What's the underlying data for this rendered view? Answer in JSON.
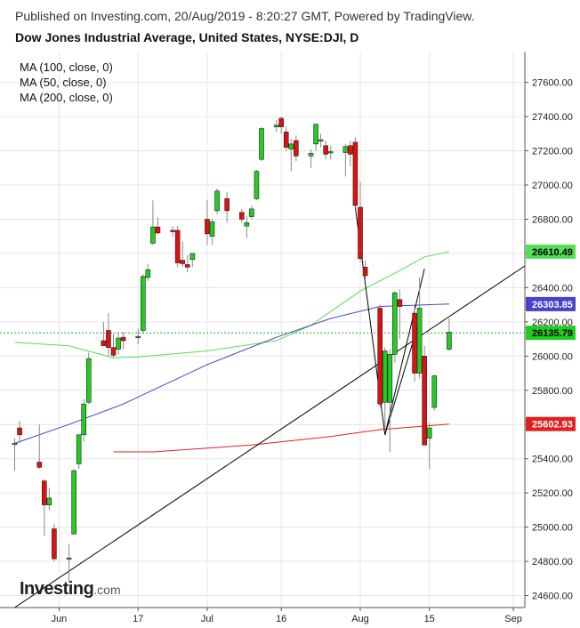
{
  "header": {
    "published": "Published on Investing.com, 20/Aug/2019 - 8:20:27 GMT, Powered by TradingView.",
    "title": "Dow Jones Industrial Average, United States, NYSE:DJI, D"
  },
  "legend": [
    "MA (100, close, 0)",
    "MA (50, close, 0)",
    "MA (200, close, 0)"
  ],
  "logo": {
    "name": "Investing",
    "suffix": ".com"
  },
  "colors": {
    "up": "#22cc22",
    "down": "#dd1111",
    "ma50": "#55dd55",
    "ma100": "#4444cc",
    "ma200": "#dd2222",
    "last_price_line": "#22aa22",
    "trendline": "#000000",
    "grid": "#e6e6e6"
  },
  "chart_data": {
    "type": "candlestick",
    "y_ticks": [
      "27600.00",
      "27400.00",
      "27200.00",
      "27000.00",
      "26800.00",
      "26600.00",
      "26400.00",
      "26200.00",
      "26000.00",
      "25800.00",
      "25600.00",
      "25400.00",
      "25200.00",
      "25000.00",
      "24800.00",
      "24600.00"
    ],
    "ylim": [
      24530,
      27780
    ],
    "x_ticks": [
      "Jun",
      "17",
      "Jul",
      "16",
      "Aug",
      "15",
      "Sep"
    ],
    "price_labels": [
      {
        "text": "26610.49",
        "value": 26610.49,
        "series": "ma50"
      },
      {
        "text": "26303.85",
        "value": 26303.85,
        "series": "ma100"
      },
      {
        "text": "26135.79",
        "value": 26135.79,
        "series": "last"
      },
      {
        "text": "25602.93",
        "value": 25602.93,
        "series": "ma200"
      }
    ],
    "candles": [
      {
        "date": "2019-05-23",
        "open": 25490,
        "high": 25520,
        "low": 25330,
        "close": 25490
      },
      {
        "date": "2019-05-24",
        "open": 25580,
        "high": 25620,
        "low": 25490,
        "close": 25540
      },
      {
        "date": "2019-05-28",
        "open": 25380,
        "high": 25600,
        "low": 25340,
        "close": 25350
      },
      {
        "date": "2019-05-29",
        "open": 25270,
        "high": 25280,
        "low": 24950,
        "close": 25130
      },
      {
        "date": "2019-05-30",
        "open": 25130,
        "high": 25230,
        "low": 25100,
        "close": 25170
      },
      {
        "date": "2019-05-31",
        "open": 24990,
        "high": 25020,
        "low": 24800,
        "close": 24815
      },
      {
        "date": "2019-06-03",
        "open": 24815,
        "high": 24900,
        "low": 24680,
        "close": 24820
      },
      {
        "date": "2019-06-04",
        "open": 24960,
        "high": 25340,
        "low": 24960,
        "close": 25330
      },
      {
        "date": "2019-06-05",
        "open": 25370,
        "high": 25540,
        "low": 25340,
        "close": 25540
      },
      {
        "date": "2019-06-06",
        "open": 25540,
        "high": 25750,
        "low": 25500,
        "close": 25720
      },
      {
        "date": "2019-06-07",
        "open": 25730,
        "high": 26020,
        "low": 25720,
        "close": 25985
      },
      {
        "date": "2019-06-10",
        "open": 26090,
        "high": 26200,
        "low": 26070,
        "close": 26060
      },
      {
        "date": "2019-06-11",
        "open": 26150,
        "high": 26250,
        "low": 26000,
        "close": 26050
      },
      {
        "date": "2019-06-12",
        "open": 26050,
        "high": 26130,
        "low": 25990,
        "close": 26005
      },
      {
        "date": "2019-06-13",
        "open": 26040,
        "high": 26140,
        "low": 26010,
        "close": 26105
      },
      {
        "date": "2019-06-14",
        "open": 26110,
        "high": 26140,
        "low": 26040,
        "close": 26090
      },
      {
        "date": "2019-06-17",
        "open": 26110,
        "high": 26160,
        "low": 26070,
        "close": 26115
      },
      {
        "date": "2019-06-18",
        "open": 26150,
        "high": 26480,
        "low": 26130,
        "close": 26465
      },
      {
        "date": "2019-06-19",
        "open": 26460,
        "high": 26540,
        "low": 26440,
        "close": 26505
      },
      {
        "date": "2019-06-20",
        "open": 26660,
        "high": 26910,
        "low": 26650,
        "close": 26755
      },
      {
        "date": "2019-06-21",
        "open": 26755,
        "high": 26810,
        "low": 26710,
        "close": 26720
      },
      {
        "date": "2019-06-24",
        "open": 26735,
        "high": 26760,
        "low": 26700,
        "close": 26730
      },
      {
        "date": "2019-06-25",
        "open": 26735,
        "high": 26760,
        "low": 26520,
        "close": 26545
      },
      {
        "date": "2019-06-26",
        "open": 26560,
        "high": 26670,
        "low": 26520,
        "close": 26540
      },
      {
        "date": "2019-06-27",
        "open": 26535,
        "high": 26590,
        "low": 26490,
        "close": 26520
      },
      {
        "date": "2019-06-28",
        "open": 26565,
        "high": 26600,
        "low": 26520,
        "close": 26600
      },
      {
        "date": "2019-07-01",
        "open": 26800,
        "high": 26910,
        "low": 26650,
        "close": 26715
      },
      {
        "date": "2019-07-02",
        "open": 26700,
        "high": 26800,
        "low": 26650,
        "close": 26785
      },
      {
        "date": "2019-07-03",
        "open": 26850,
        "high": 26980,
        "low": 26830,
        "close": 26965
      },
      {
        "date": "2019-07-05",
        "open": 26920,
        "high": 26960,
        "low": 26780,
        "close": 26850
      },
      {
        "date": "2019-07-08",
        "open": 26840,
        "high": 26860,
        "low": 26780,
        "close": 26800
      },
      {
        "date": "2019-07-09",
        "open": 26760,
        "high": 26820,
        "low": 26690,
        "close": 26780
      },
      {
        "date": "2019-07-10",
        "open": 26815,
        "high": 26880,
        "low": 26800,
        "close": 26860
      },
      {
        "date": "2019-07-11",
        "open": 26920,
        "high": 27090,
        "low": 26910,
        "close": 27080
      },
      {
        "date": "2019-07-12",
        "open": 27150,
        "high": 27340,
        "low": 27140,
        "close": 27330
      },
      {
        "date": "2019-07-15",
        "open": 27340,
        "high": 27380,
        "low": 27310,
        "close": 27350
      },
      {
        "date": "2019-07-16",
        "open": 27390,
        "high": 27400,
        "low": 27300,
        "close": 27340
      },
      {
        "date": "2019-07-17",
        "open": 27310,
        "high": 27340,
        "low": 27200,
        "close": 27220
      },
      {
        "date": "2019-07-18",
        "open": 27210,
        "high": 27270,
        "low": 27080,
        "close": 27240
      },
      {
        "date": "2019-07-19",
        "open": 27260,
        "high": 27290,
        "low": 27140,
        "close": 27170
      },
      {
        "date": "2019-07-22",
        "open": 27170,
        "high": 27210,
        "low": 27100,
        "close": 27185
      },
      {
        "date": "2019-07-23",
        "open": 27240,
        "high": 27360,
        "low": 27200,
        "close": 27355
      },
      {
        "date": "2019-07-24",
        "open": 27260,
        "high": 27300,
        "low": 27220,
        "close": 27265
      },
      {
        "date": "2019-07-25",
        "open": 27230,
        "high": 27260,
        "low": 27150,
        "close": 27180
      },
      {
        "date": "2019-07-26",
        "open": 27190,
        "high": 27230,
        "low": 27150,
        "close": 27195
      },
      {
        "date": "2019-07-29",
        "open": 27190,
        "high": 27240,
        "low": 27050,
        "close": 27225
      },
      {
        "date": "2019-07-30",
        "open": 27230,
        "high": 27260,
        "low": 27110,
        "close": 27180
      },
      {
        "date": "2019-07-31",
        "open": 27250,
        "high": 27280,
        "low": 26870,
        "close": 26880
      },
      {
        "date": "2019-08-01",
        "open": 26870,
        "high": 27020,
        "low": 26550,
        "close": 26570
      },
      {
        "date": "2019-08-02",
        "open": 26520,
        "high": 26560,
        "low": 26450,
        "close": 26470
      },
      {
        "date": "2019-08-05",
        "open": 26280,
        "high": 26300,
        "low": 25700,
        "close": 25720
      },
      {
        "date": "2019-08-06",
        "open": 25730,
        "high": 26050,
        "low": 25560,
        "close": 26030
      },
      {
        "date": "2019-08-07",
        "open": 25730,
        "high": 26040,
        "low": 25440,
        "close": 26010
      },
      {
        "date": "2019-08-08",
        "open": 26010,
        "high": 26380,
        "low": 25960,
        "close": 26370
      },
      {
        "date": "2019-08-09",
        "open": 26330,
        "high": 26390,
        "low": 26100,
        "close": 26290
      },
      {
        "date": "2019-08-12",
        "open": 26250,
        "high": 26300,
        "low": 25850,
        "close": 25900
      },
      {
        "date": "2019-08-13",
        "open": 25900,
        "high": 26460,
        "low": 25870,
        "close": 26280
      },
      {
        "date": "2019-08-14",
        "open": 26000,
        "high": 26060,
        "low": 25480,
        "close": 25480
      },
      {
        "date": "2019-08-15",
        "open": 25520,
        "high": 25610,
        "low": 25340,
        "close": 25580
      },
      {
        "date": "2019-08-16",
        "open": 25700,
        "high": 25890,
        "low": 25680,
        "close": 25885
      },
      {
        "date": "2019-08-19",
        "open": 26040,
        "high": 26220,
        "low": 26030,
        "close": 26140
      }
    ],
    "moving_averages": [
      {
        "name": "MA (50, close, 0)",
        "color": "#55dd55",
        "points": [
          [
            "2019-05-23",
            26080
          ],
          [
            "2019-06-03",
            26060
          ],
          [
            "2019-06-12",
            25990
          ],
          [
            "2019-06-17",
            25995
          ],
          [
            "2019-07-01",
            26030
          ],
          [
            "2019-07-15",
            26090
          ],
          [
            "2019-07-22",
            26180
          ],
          [
            "2019-08-01",
            26380
          ],
          [
            "2019-08-09",
            26500
          ],
          [
            "2019-08-14",
            26580
          ],
          [
            "2019-08-19",
            26610
          ]
        ]
      },
      {
        "name": "MA (100, close, 0)",
        "color": "#4444cc",
        "points": [
          [
            "2019-05-23",
            25490
          ],
          [
            "2019-06-03",
            25600
          ],
          [
            "2019-06-14",
            25720
          ],
          [
            "2019-07-01",
            25950
          ],
          [
            "2019-07-15",
            26110
          ],
          [
            "2019-07-26",
            26220
          ],
          [
            "2019-08-05",
            26290
          ],
          [
            "2019-08-19",
            26304
          ]
        ]
      },
      {
        "name": "MA (200, close, 0)",
        "color": "#dd2222",
        "points": [
          [
            "2019-06-12",
            25440
          ],
          [
            "2019-06-20",
            25440
          ],
          [
            "2019-07-10",
            25480
          ],
          [
            "2019-07-26",
            25530
          ],
          [
            "2019-08-05",
            25570
          ],
          [
            "2019-08-19",
            25603
          ]
        ]
      }
    ],
    "trendlines": [
      {
        "from": [
          "2019-05-23",
          24530
        ],
        "to": [
          "2019-09-04",
          26540
        ]
      },
      {
        "from": [
          "2019-07-31",
          26870
        ],
        "to": [
          "2019-08-06",
          25540
        ]
      },
      {
        "from": [
          "2019-08-06",
          25540
        ],
        "to": [
          "2019-08-14",
          26510
        ]
      },
      {
        "from": [
          "2019-08-06",
          25540
        ],
        "to": [
          "2019-08-13",
          26210
        ]
      }
    ],
    "last_price": 26135.79
  }
}
